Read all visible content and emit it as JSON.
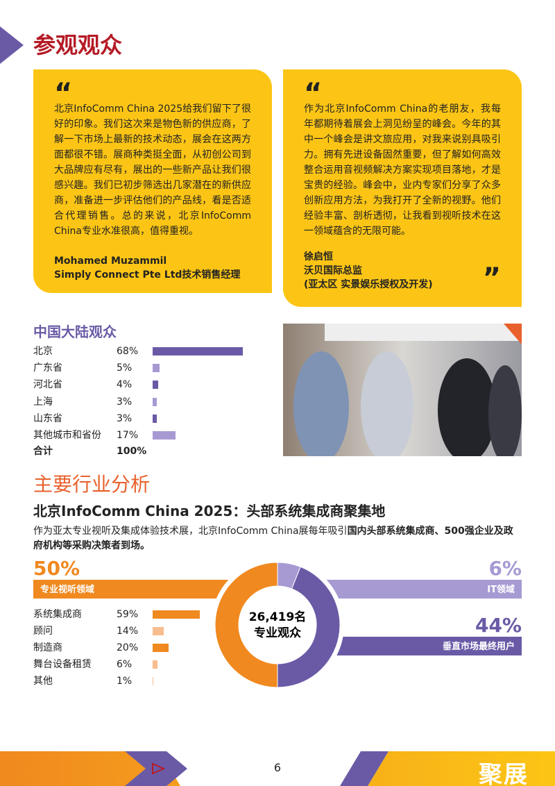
{
  "header": {
    "title": "参观观众"
  },
  "testimonials": [
    {
      "open_quote": "“",
      "text": "北京InfoComm China 2025给我们留下了很好的印象。我们这次来是物色新的供应商，了解一下市场上最新的技术动态，展会在这两方面都很不错。展商种类挺全面，从初创公司到大品牌应有尽有，展出的一些新产品让我们很感兴趣。我们已初步筛选出几家潜在的新供应商，准备进一步评估他们的产品线，看是否适合代理销售。总的来说，北京InfoComm China专业水准很高，值得重视。",
      "author": [
        "Mohamed Muzammil",
        "Simply Connect Pte Ltd技术销售经理"
      ]
    },
    {
      "open_quote": "“",
      "close_quote": "”",
      "text": "作为北京InfoComm China的老朋友，我每年都期待着展会上洞见纷呈的峰会。今年的其中一个峰会是讲文旅应用，对我来说别具吸引力。拥有先进设备固然重要，但了解如何高效整合运用音视频解决方案实现项目落地，才是宝贵的经验。峰会中，业内专家们分享了众多创新应用方法，为我打开了全新的视野。他们经验丰富、剖析透彻，让我看到视听技术在这一领域蕴含的无限可能。",
      "author": [
        "徐启恒",
        "沃贝国际总监",
        "(亚太区 实景娱乐授权及开发)"
      ]
    }
  ],
  "mainland": {
    "title": "中国大陆观众",
    "rows": [
      {
        "name": "北京",
        "value": 68,
        "value_label": "68%",
        "color": "#6a5aa6"
      },
      {
        "name": "广东省",
        "value": 5,
        "value_label": "5%",
        "color": "#a79ad3"
      },
      {
        "name": "河北省",
        "value": 4,
        "value_label": "4%",
        "color": "#6a5aa6"
      },
      {
        "name": "上海",
        "value": 3,
        "value_label": "3%",
        "color": "#a79ad3"
      },
      {
        "name": "山东省",
        "value": 3,
        "value_label": "3%",
        "color": "#6a5aa6"
      },
      {
        "name": "其他城市和省份",
        "value": 17,
        "value_label": "17%",
        "color": "#a79ad3"
      }
    ],
    "total": {
      "name": "合计",
      "label": "100%"
    }
  },
  "industry": {
    "title": "主要行业分析",
    "subtitle": "北京InfoComm China 2025：头部系统集成商聚集地",
    "intro": [
      "作为亚太专业视听及集成体验技术展，北京InfoComm China展每年吸引",
      "国内头部系统集成商、500强企业及政府机构等采购决策者到场。"
    ],
    "center": [
      "26,419名",
      "专业观众"
    ],
    "segments": [
      {
        "name": "IT领域",
        "value": 6,
        "value_label": "6%",
        "color": "#a79ad3"
      },
      {
        "name": "垂直市场最终用户",
        "value": 44,
        "value_label": "44%",
        "color": "#6a5aa6"
      },
      {
        "name": "专业视听领域",
        "value": 50,
        "value_label": "50%",
        "color": "#f0891f"
      }
    ],
    "breakdown": [
      {
        "name": "系统集成商",
        "value": 59,
        "value_label": "59%",
        "color": "#f0891f"
      },
      {
        "name": "顾问",
        "value": 14,
        "value_label": "14%",
        "color": "#f8bd8e"
      },
      {
        "name": "制造商",
        "value": 20,
        "value_label": "20%",
        "color": "#f0891f"
      },
      {
        "name": "舞台设备租赁",
        "value": 6,
        "value_label": "6%",
        "color": "#f8bd8e"
      },
      {
        "name": "其他",
        "value": 1,
        "value_label": "1%",
        "color": "#f8bd8e"
      }
    ]
  },
  "footer": {
    "page": "6",
    "logo": "聚展"
  }
}
